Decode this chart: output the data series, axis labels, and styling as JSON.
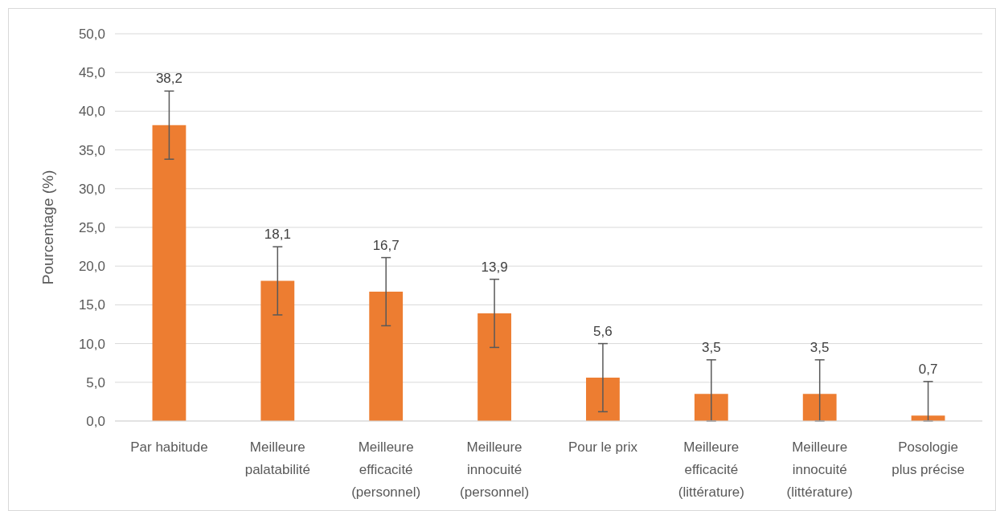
{
  "chart_data": {
    "type": "bar",
    "ylabel": "Pourcentage (%)",
    "categories": [
      "Par habitude",
      "Meilleure palatabilité",
      "Meilleure efficacité (personnel)",
      "Meilleure innocuité (personnel)",
      "Pour le prix",
      "Meilleure efficacité (littérature)",
      "Meilleure innocuité (littérature)",
      "Posologie plus précise"
    ],
    "values": [
      38.2,
      18.1,
      16.7,
      13.9,
      5.6,
      3.5,
      3.5,
      0.7
    ],
    "value_labels": [
      "38,2",
      "18,1",
      "16,7",
      "13,9",
      "5,6",
      "3,5",
      "3,5",
      "0,7"
    ],
    "errors": [
      4.4,
      4.4,
      4.4,
      4.4,
      4.4,
      [
        0,
        7.9
      ],
      [
        0,
        7.9
      ],
      [
        0,
        5.1
      ]
    ],
    "color": "#ed7d31",
    "ylim": [
      0,
      50
    ],
    "yticks": [
      {
        "value": 0,
        "label": "0,0"
      },
      {
        "value": 5,
        "label": "5,0"
      },
      {
        "value": 10,
        "label": "10,0"
      },
      {
        "value": 15,
        "label": "15,0"
      },
      {
        "value": 20,
        "label": "20,0"
      },
      {
        "value": 25,
        "label": "25,0"
      },
      {
        "value": 30,
        "label": "30,0"
      },
      {
        "value": 35,
        "label": "35,0"
      },
      {
        "value": 40,
        "label": "40,0"
      },
      {
        "value": 45,
        "label": "45,0"
      },
      {
        "value": 50,
        "label": "50,0"
      }
    ],
    "grid": "y"
  }
}
